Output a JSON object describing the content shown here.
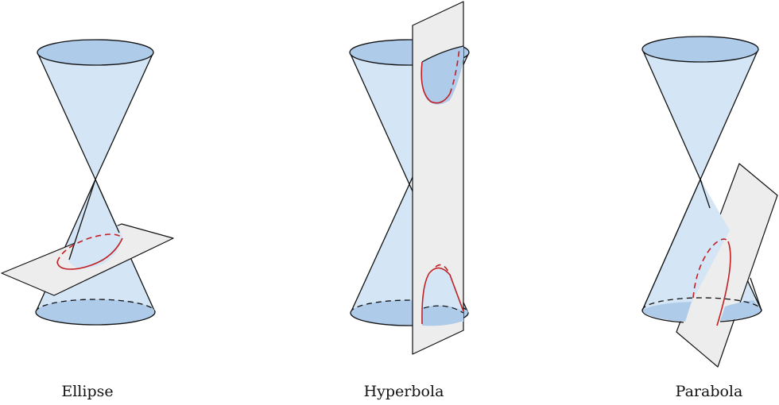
{
  "figures": [
    {
      "id": "ellipse",
      "label": "Ellipse"
    },
    {
      "id": "hyperbola",
      "label": "Hyperbola"
    },
    {
      "id": "parabola",
      "label": "Parabola"
    }
  ],
  "colors": {
    "cone_fill": "#d4e5f5",
    "cap_fill": "#aecbea",
    "plane_fill": "#ededed",
    "outline": "#111111",
    "curve": "#c01f24"
  }
}
